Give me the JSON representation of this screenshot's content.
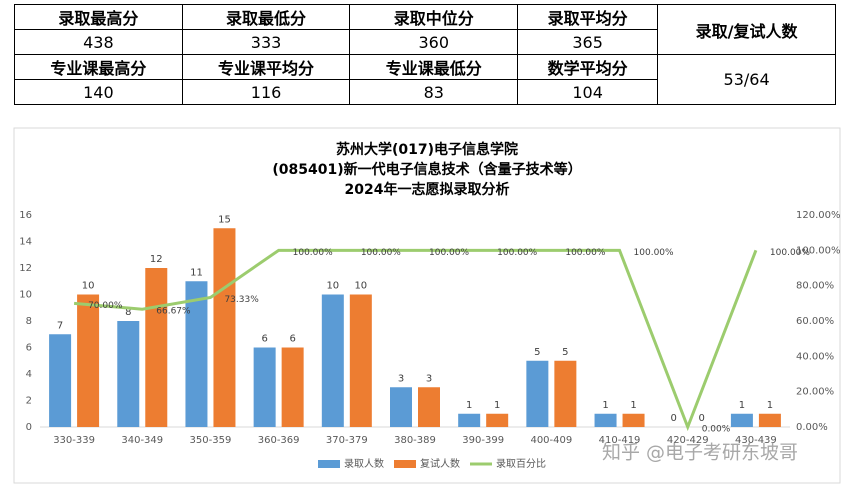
{
  "table": {
    "rows": [
      [
        "录取最高分",
        "录取最低分",
        "录取中位分",
        "录取平均分",
        "录取/复试人数"
      ],
      [
        438,
        333,
        360,
        365
      ],
      [
        "专业课最高分",
        "专业课平均分",
        "专业课最低分",
        "数学平均分",
        "53/64"
      ],
      [
        140,
        116,
        83,
        104
      ]
    ]
  },
  "chart_data": {
    "type": "bar",
    "title": [
      "苏州大学(017)电子信息学院",
      "(085401)新一代电子信息技术（含量子技术等）",
      "2024年一志愿拟录取分析"
    ],
    "categories": [
      "330-339",
      "340-349",
      "350-359",
      "360-369",
      "370-379",
      "380-389",
      "390-399",
      "400-409",
      "410-419",
      "420-429",
      "430-439"
    ],
    "series": [
      {
        "name": "录取人数",
        "color": "#5b9bd5",
        "values": [
          7,
          8,
          11,
          6,
          10,
          3,
          1,
          5,
          1,
          0,
          1
        ]
      },
      {
        "name": "复试人数",
        "color": "#ed7d31",
        "values": [
          10,
          12,
          15,
          6,
          10,
          3,
          1,
          5,
          1,
          0,
          1
        ]
      },
      {
        "name": "录取百分比",
        "color": "#9ccc6e",
        "type": "line",
        "axis": "y2",
        "values": [
          70,
          66.67,
          73.33,
          100,
          100,
          100,
          100,
          100,
          100,
          0,
          100
        ],
        "value_labels": [
          "70.00%",
          "66.67%",
          "73.33%",
          "100.00%",
          "100.00%",
          "100.00%",
          "100.00%",
          "100.00%",
          "100.00%",
          "0.00%",
          "100.00%"
        ]
      }
    ],
    "ylim": [
      0,
      16
    ],
    "yticks": [
      0,
      2,
      4,
      6,
      8,
      10,
      12,
      14,
      16
    ],
    "y2lim": [
      0,
      120
    ],
    "y2ticks": [
      {
        "value": 0,
        "label": "0.00%"
      },
      {
        "value": 20,
        "label": "20.00%"
      },
      {
        "value": 40,
        "label": "40.00%"
      },
      {
        "value": 60,
        "label": "60.00%"
      },
      {
        "value": 80,
        "label": "80.00%"
      },
      {
        "value": 100,
        "label": "100.00%"
      },
      {
        "value": 120,
        "label": "120.00%"
      }
    ],
    "grid": false,
    "legend": "bottom"
  },
  "watermark": "知乎 @电子考研东坡哥"
}
